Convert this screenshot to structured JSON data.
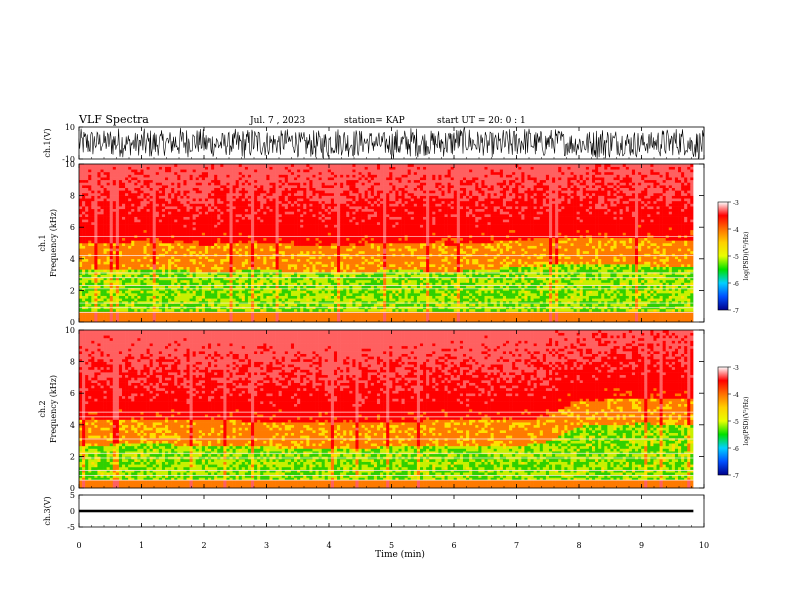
{
  "header": {
    "title": "VLF Spectra",
    "date": "Jul. 7 , 2023",
    "station": "station= KAP",
    "start": "start UT = 20: 0 : 1"
  },
  "colorbar": {
    "label": "log(PSD)(V²/Hz)",
    "ticks": [
      "-3",
      "-4",
      "-5",
      "-6",
      "-7"
    ],
    "colors": [
      "#00008b",
      "#0050ff",
      "#00d0ff",
      "#00e000",
      "#e8ff00",
      "#ffd000",
      "#ff7000",
      "#ff0000",
      "#ffffff"
    ]
  },
  "chart_data": [
    {
      "type": "line",
      "name": "ch1-waveform",
      "ylabel": "ch.1(V)",
      "ylim": [
        -10,
        10
      ],
      "yticks": [
        "10",
        "-10"
      ],
      "x": [
        0,
        0.25,
        0.5,
        0.75,
        1,
        1.25,
        1.5,
        1.75,
        2,
        2.25,
        2.5,
        2.75,
        3,
        3.25,
        3.5,
        3.75,
        4,
        4.25,
        4.5,
        4.75,
        5,
        5.25,
        5.5,
        5.75,
        6,
        6.25,
        6.5,
        6.75,
        7,
        7.25,
        7.5,
        7.75,
        8,
        8.25,
        8.5,
        8.75,
        9,
        9.25,
        9.5,
        9.75
      ],
      "envelope_low": [
        -9,
        -7,
        -9,
        -8,
        -10,
        -8,
        -9,
        -7,
        -9,
        -8,
        -10,
        -9,
        -8,
        -7,
        -9,
        -10,
        -8,
        -9,
        -7,
        -8,
        -10,
        -9,
        -8,
        -9,
        -7,
        -8,
        -9,
        -10,
        -8,
        -9,
        -7,
        -8,
        -9,
        -10,
        -8,
        -9,
        -7,
        -9,
        -8,
        -10
      ],
      "envelope_high": [
        9,
        8,
        10,
        7,
        9,
        8,
        10,
        9,
        8,
        7,
        9,
        10,
        8,
        9,
        7,
        8,
        10,
        9,
        8,
        7,
        9,
        10,
        8,
        9,
        10,
        8,
        7,
        9,
        10,
        8,
        9,
        7,
        8,
        10,
        9,
        8,
        7,
        9,
        10,
        8
      ]
    },
    {
      "type": "heatmap",
      "name": "ch1-spectrogram",
      "ylabel": "ch.1\nFrequency (kHz)",
      "ylim": [
        0,
        10
      ],
      "yticks": [
        "0",
        "2",
        "4",
        "6",
        "8",
        "10"
      ],
      "xlim": [
        0,
        9.83
      ],
      "clim": [
        -7,
        -3
      ],
      "description_bands_kHz": {
        "strong_green_yellow": [
          1.0,
          3.5
        ],
        "orange_red": [
          3.5,
          5.2
        ],
        "sparse_red": [
          5.2,
          10
        ]
      },
      "time_min": [
        0,
        1,
        2,
        3,
        4,
        5,
        6,
        7,
        8,
        9,
        9.8
      ],
      "upper_edge_kHz": [
        5.0,
        5.1,
        4.9,
        5.0,
        4.8,
        5.0,
        4.9,
        5.2,
        5.4,
        5.3,
        5.2
      ],
      "lines_kHz": [
        0.6,
        0.9,
        1.2,
        2.1,
        2.3,
        2.8,
        3.1,
        4.2,
        5.4
      ]
    },
    {
      "type": "heatmap",
      "name": "ch2-spectrogram",
      "ylabel": "ch.2\nFrequency (kHz)",
      "ylim": [
        0,
        10
      ],
      "yticks": [
        "0",
        "2",
        "4",
        "6",
        "8",
        "10"
      ],
      "xlim": [
        0,
        9.83
      ],
      "clim": [
        -7,
        -3
      ],
      "description_bands_kHz": {
        "strong_green_yellow": [
          0.8,
          3.0
        ],
        "orange_red": [
          3.0,
          4.6
        ],
        "sparse_red": [
          4.6,
          10
        ]
      },
      "time_min": [
        0,
        1,
        2,
        3,
        4,
        5,
        6,
        7,
        7.4,
        8,
        9,
        9.8
      ],
      "upper_edge_kHz": [
        4.3,
        4.4,
        4.3,
        4.2,
        4.1,
        4.2,
        4.3,
        4.3,
        4.4,
        5.5,
        5.7,
        5.6
      ],
      "lines_kHz": [
        0.5,
        0.8,
        1.1,
        1.9,
        2.2,
        3.1,
        4.5,
        4.8
      ]
    },
    {
      "type": "line",
      "name": "ch3-waveform",
      "ylabel": "ch.3(V)",
      "ylim": [
        -5,
        5
      ],
      "yticks": [
        "5",
        "0",
        "-5"
      ],
      "x": [
        0,
        9.83
      ],
      "envelope_low": [
        -0.4,
        -0.4
      ],
      "envelope_high": [
        0.4,
        0.4
      ]
    }
  ],
  "x_axis": {
    "label": "Time (min)",
    "ticks": [
      "0",
      "1",
      "2",
      "3",
      "4",
      "5",
      "6",
      "7",
      "8",
      "9",
      "10"
    ],
    "xlim": [
      0,
      10
    ]
  }
}
